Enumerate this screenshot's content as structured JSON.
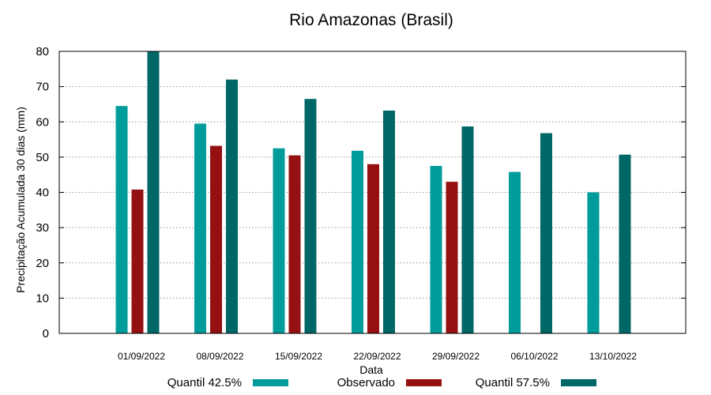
{
  "chart_data": {
    "type": "bar",
    "title": "Rio Amazonas (Brasil)",
    "xlabel": "Data",
    "ylabel": "Precipitação Acumulada 30 dias (mm)",
    "ylim": [
      0,
      80
    ],
    "yticks": [
      0,
      10,
      20,
      30,
      40,
      50,
      60,
      70,
      80
    ],
    "grid": true,
    "legend_position": "bottom",
    "categories": [
      "01/09/2022",
      "08/09/2022",
      "15/09/2022",
      "22/09/2022",
      "29/09/2022",
      "06/10/2022",
      "13/10/2022"
    ],
    "series": [
      {
        "name": "Quantil 42.5%",
        "color": "#009b9b",
        "values": [
          64.5,
          59.5,
          52.5,
          51.8,
          47.5,
          45.8,
          40.0
        ]
      },
      {
        "name": "Observado",
        "color": "#951111",
        "values": [
          40.8,
          53.2,
          50.5,
          48.0,
          43.0,
          null,
          null
        ]
      },
      {
        "name": "Quantil 57.5%",
        "color": "#006767",
        "values": [
          80.0,
          72.0,
          66.5,
          63.2,
          58.7,
          56.8,
          50.7
        ]
      }
    ]
  }
}
